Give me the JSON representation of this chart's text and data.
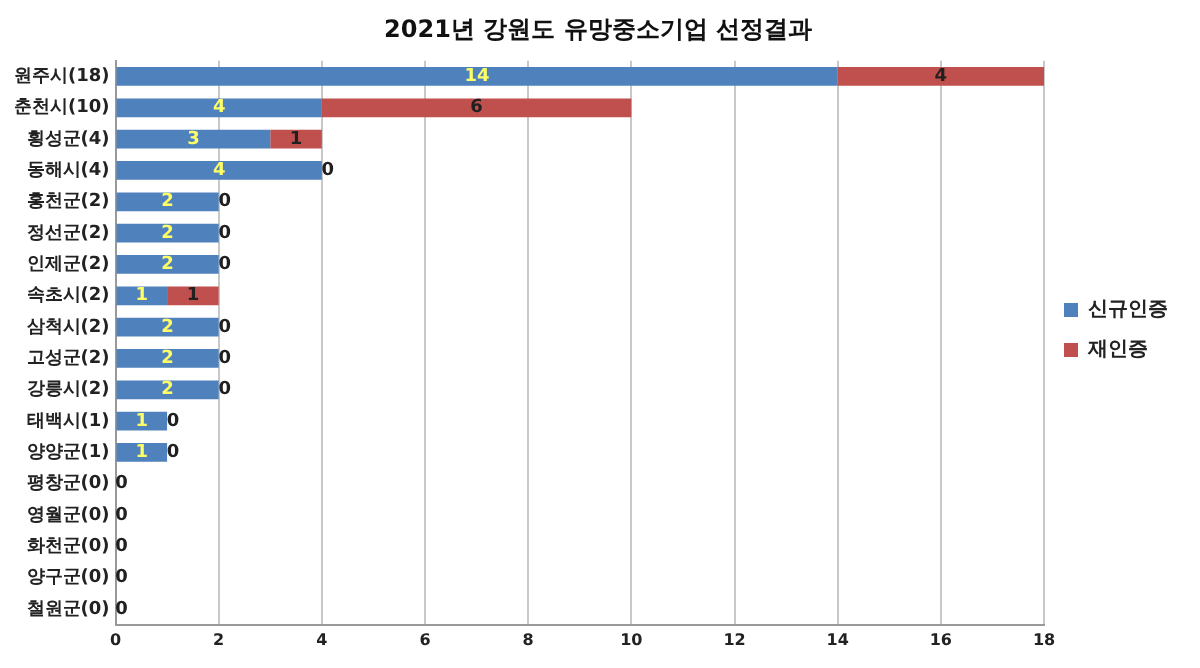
{
  "chart_data": {
    "type": "bar",
    "orientation": "horizontal",
    "stacked": true,
    "title": "2021년 강원도 유망중소기업 선정결과",
    "categories": [
      "원주시(18)",
      "춘천시(10)",
      "횡성군(4)",
      "동해시(4)",
      "홍천군(2)",
      "정선군(2)",
      "인제군(2)",
      "속초시(2)",
      "삼척시(2)",
      "고성군(2)",
      "강릉시(2)",
      "태백시(1)",
      "양양군(1)",
      "평창군(0)",
      "영월군(0)",
      "화천군(0)",
      "양구군(0)",
      "철원군(0)"
    ],
    "series": [
      {
        "name": "신규인증",
        "color": "#4f81bd",
        "values": [
          14,
          4,
          3,
          4,
          2,
          2,
          2,
          1,
          2,
          2,
          2,
          1,
          1,
          0,
          0,
          0,
          0,
          0
        ],
        "value_labels": [
          "14",
          "4",
          "3",
          "4",
          "2",
          "2",
          "2",
          "1",
          "2",
          "2",
          "2",
          "1",
          "1",
          null,
          null,
          null,
          null,
          null
        ]
      },
      {
        "name": "재인증",
        "color": "#c0504d",
        "values": [
          4,
          6,
          1,
          0,
          0,
          0,
          0,
          1,
          0,
          0,
          0,
          0,
          0,
          0,
          0,
          0,
          0,
          0
        ],
        "value_labels": [
          "4",
          "6",
          "1",
          "0",
          "0",
          "0",
          "0",
          "1",
          "0",
          "0",
          "0",
          "0",
          "0",
          "0",
          "0",
          "0",
          "0",
          "0"
        ]
      }
    ],
    "xlim": [
      0,
      18
    ],
    "xticks": [
      0,
      2,
      4,
      6,
      8,
      10,
      12,
      14,
      16,
      18
    ],
    "grid": "x",
    "legend": "right"
  }
}
